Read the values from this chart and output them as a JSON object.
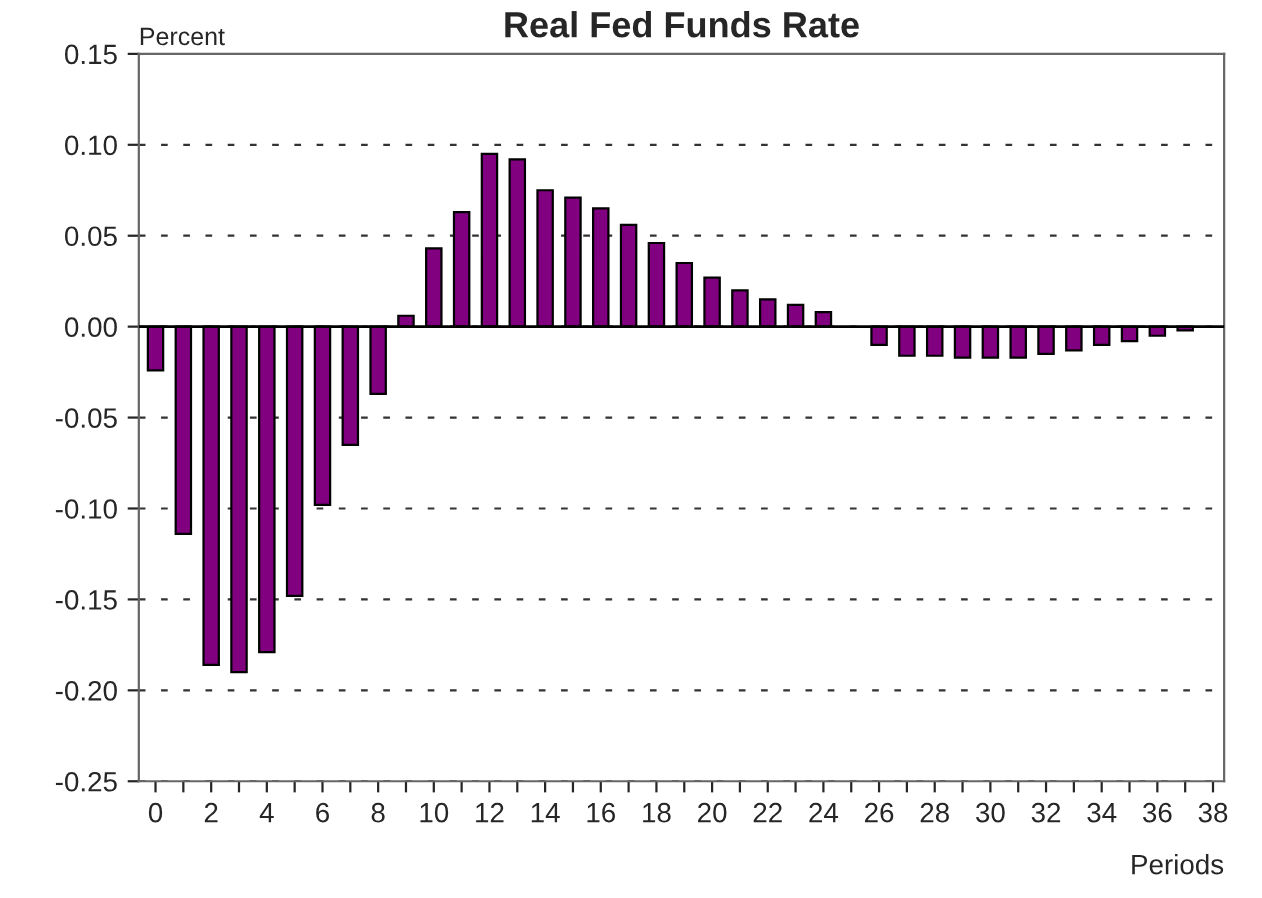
{
  "chart_data": {
    "type": "bar",
    "title": "Real Fed Funds Rate",
    "ylabel": "Percent",
    "xlabel": "Periods",
    "x": [
      0,
      1,
      2,
      3,
      4,
      5,
      6,
      7,
      8,
      9,
      10,
      11,
      12,
      13,
      14,
      15,
      16,
      17,
      18,
      19,
      20,
      21,
      22,
      23,
      24,
      25,
      26,
      27,
      28,
      29,
      30,
      31,
      32,
      33,
      34,
      35,
      36,
      37
    ],
    "values": [
      -0.024,
      -0.114,
      -0.186,
      -0.19,
      -0.179,
      -0.148,
      -0.098,
      -0.065,
      -0.037,
      0.006,
      0.043,
      0.063,
      0.095,
      0.092,
      0.075,
      0.071,
      0.065,
      0.056,
      0.046,
      0.035,
      0.027,
      0.02,
      0.015,
      0.012,
      0.008,
      null,
      -0.01,
      -0.016,
      -0.016,
      -0.017,
      -0.017,
      -0.017,
      -0.015,
      -0.013,
      -0.01,
      -0.008,
      -0.005,
      -0.002
    ],
    "color": "#800080",
    "xlim": [
      -0.6,
      38.4
    ],
    "xticks": [
      0,
      {
        "value": 1,
        "label": null
      },
      2,
      {
        "value": 3,
        "label": null
      },
      4,
      {
        "value": 5,
        "label": null
      },
      6,
      {
        "value": 7,
        "label": null
      },
      8,
      {
        "value": 9,
        "label": null
      },
      10,
      {
        "value": 11,
        "label": null
      },
      12,
      {
        "value": 13,
        "label": null
      },
      14,
      {
        "value": 15,
        "label": null
      },
      16,
      {
        "value": 17,
        "label": null
      },
      18,
      {
        "value": 19,
        "label": null
      },
      20,
      {
        "value": 21,
        "label": null
      },
      22,
      {
        "value": 23,
        "label": null
      },
      24,
      {
        "value": 25,
        "label": null
      },
      26,
      {
        "value": 27,
        "label": null
      },
      28,
      {
        "value": 29,
        "label": null
      },
      30,
      {
        "value": 31,
        "label": null
      },
      32,
      {
        "value": 33,
        "label": null
      },
      34,
      {
        "value": 35,
        "label": null
      },
      36,
      {
        "value": 37,
        "label": null
      },
      38
    ],
    "ylim": [
      -0.25,
      0.15
    ],
    "yticks": [
      {
        "value": -0.25,
        "label": "-0.25"
      },
      {
        "value": -0.2,
        "label": "-0.20"
      },
      {
        "value": -0.15,
        "label": "-0.15"
      },
      {
        "value": -0.1,
        "label": "-0.10"
      },
      {
        "value": -0.05,
        "label": "-0.05"
      },
      {
        "value": 0,
        "label": "0.00"
      },
      {
        "value": 0.05,
        "label": "0.05"
      },
      {
        "value": 0.1,
        "label": "0.10"
      },
      {
        "value": 0.15,
        "label": "0.15"
      }
    ],
    "grid": "y",
    "line_style": "dashed"
  }
}
